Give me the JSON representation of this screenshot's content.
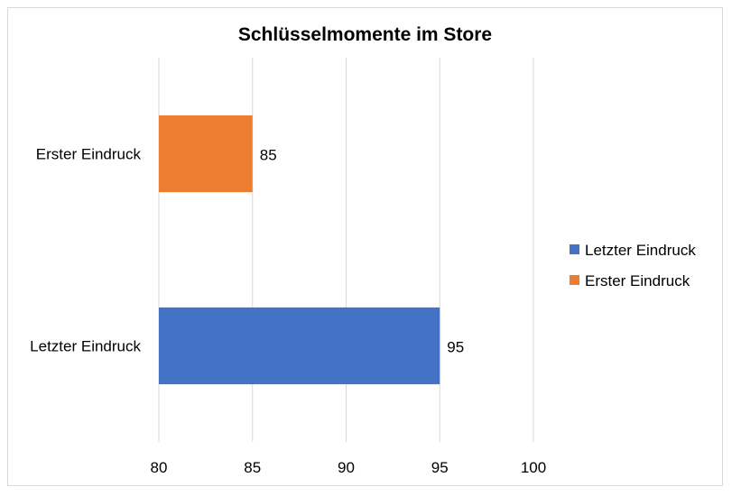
{
  "chart_data": {
    "type": "bar",
    "orientation": "horizontal",
    "title": "Schlüsselmomente im Store",
    "categories": [
      "Erster Eindruck",
      "Letzter Eindruck"
    ],
    "values": [
      85,
      95
    ],
    "colors": [
      "#ed7d31",
      "#4472c4"
    ],
    "xlim": [
      80,
      100
    ],
    "xticks": [
      80,
      85,
      90,
      95,
      100
    ],
    "xtick_labels": [
      "80",
      "85",
      "90",
      "95",
      "100"
    ],
    "data_labels": [
      "85",
      "95"
    ],
    "grid": true,
    "legend": {
      "placement": "right",
      "entries": [
        {
          "label": "Letzter Eindruck",
          "color": "#4472c4"
        },
        {
          "label": "Erster Eindruck",
          "color": "#ed7d31"
        }
      ]
    }
  }
}
